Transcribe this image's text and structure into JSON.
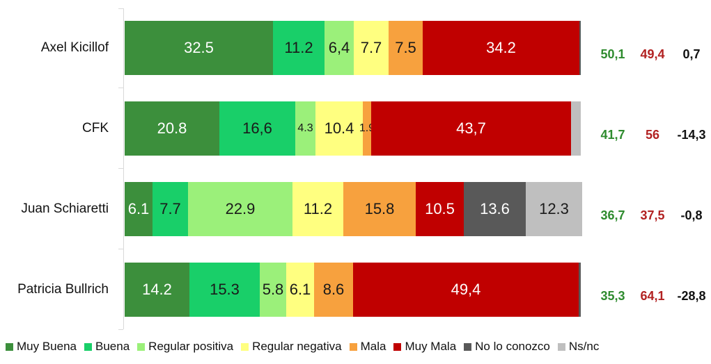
{
  "chart_data": {
    "type": "bar",
    "orientation": "horizontal",
    "stacked": true,
    "xlim": [
      0,
      100
    ],
    "categories": [
      "Axel Kicillof",
      "CFK",
      "Juan Schiaretti",
      "Patricia Bullrich"
    ],
    "series": [
      {
        "name": "Muy Buena",
        "color": "#3c8f3c",
        "values": [
          32.5,
          20.8,
          6.1,
          14.2
        ],
        "labels": [
          "32.5",
          "20.8",
          "6.1",
          "14.2"
        ]
      },
      {
        "name": "Buena",
        "color": "#19cf69",
        "values": [
          11.2,
          16.6,
          7.7,
          15.3
        ],
        "labels": [
          "11.2",
          "16,6",
          "7.7",
          "15.3"
        ]
      },
      {
        "name": "Regular positiva",
        "color": "#9bf07a",
        "values": [
          6.4,
          4.3,
          22.9,
          5.8
        ],
        "labels": [
          "6,4",
          "4.3",
          "22.9",
          "5.8"
        ]
      },
      {
        "name": "Regular negativa",
        "color": "#ffff80",
        "values": [
          7.7,
          10.4,
          11.2,
          6.1
        ],
        "labels": [
          "7.7",
          "10.4",
          "11.2",
          "6.1"
        ]
      },
      {
        "name": "Mala",
        "color": "#f7a13e",
        "values": [
          7.5,
          1.9,
          15.8,
          8.6
        ],
        "labels": [
          "7.5",
          "1.9",
          "15.8",
          "8.6"
        ]
      },
      {
        "name": "Muy Mala",
        "color": "#c00000",
        "values": [
          34.2,
          43.7,
          10.5,
          49.4
        ],
        "labels": [
          "34.2",
          "43,7",
          "10.5",
          "49,4"
        ]
      },
      {
        "name": "No lo conozco",
        "color": "#595959",
        "values": [
          0.3,
          0,
          13.6,
          0.5
        ],
        "labels": [
          "",
          "",
          "13.6",
          ""
        ]
      },
      {
        "name": "Ns/nc",
        "color": "#bfbfbf",
        "values": [
          0,
          2.2,
          12.3,
          0
        ],
        "labels": [
          "",
          "",
          "12.3",
          ""
        ]
      }
    ],
    "summary": {
      "positive": [
        "50,1",
        "41,7",
        "36,7",
        "35,3"
      ],
      "negative": [
        "49,4",
        "56",
        "37,5",
        "64,1"
      ],
      "net": [
        "0,7",
        "-14,3",
        "-0,8",
        "-28,8"
      ],
      "positive_color": "#2e8b2e",
      "negative_color": "#b22222"
    },
    "legend": [
      "Muy Buena",
      "Buena",
      "Regular positiva",
      "Regular negativa",
      "Mala",
      "Muy Mala",
      "No lo conozco",
      "Ns/nc"
    ],
    "legend_position": "bottom"
  }
}
